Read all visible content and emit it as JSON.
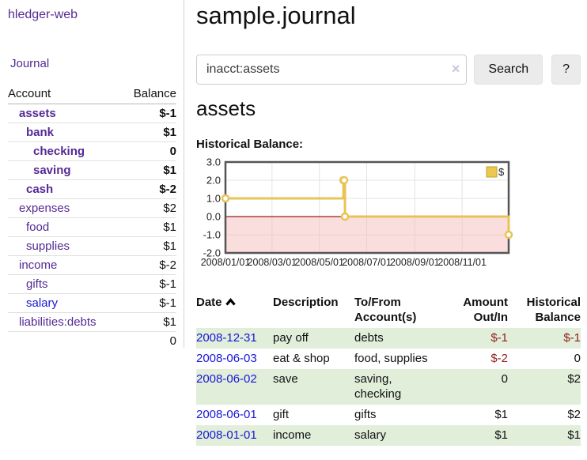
{
  "app": {
    "title": "hledger-web"
  },
  "sidebar": {
    "journal_link": "Journal",
    "headers": {
      "account": "Account",
      "balance": "Balance"
    },
    "accounts": [
      {
        "name": "assets",
        "balance": "$-1",
        "depth": 1,
        "bold": true,
        "balance_style": "neg-strong",
        "name_color": "purple"
      },
      {
        "name": "bank",
        "balance": "$1",
        "depth": 2,
        "bold": true,
        "balance_style": "normal",
        "name_color": "purple"
      },
      {
        "name": "checking",
        "balance": "0",
        "depth": 3,
        "bold": true,
        "balance_style": "normal",
        "name_color": "purple"
      },
      {
        "name": "saving",
        "balance": "$1",
        "depth": 3,
        "bold": true,
        "balance_style": "normal",
        "name_color": "purple"
      },
      {
        "name": "cash",
        "balance": "$-2",
        "depth": 2,
        "bold": true,
        "balance_style": "neg-strong",
        "name_color": "purple"
      },
      {
        "name": "expenses",
        "balance": "$2",
        "depth": 1,
        "bold": false,
        "balance_style": "normal",
        "name_color": "purple"
      },
      {
        "name": "food",
        "balance": "$1",
        "depth": 2,
        "bold": false,
        "balance_style": "normal",
        "name_color": "purple"
      },
      {
        "name": "supplies",
        "balance": "$1",
        "depth": 2,
        "bold": false,
        "balance_style": "normal",
        "name_color": "purple"
      },
      {
        "name": "income",
        "balance": "$-2",
        "depth": 1,
        "bold": false,
        "balance_style": "neg-soft",
        "name_color": "purple"
      },
      {
        "name": "gifts",
        "balance": "$-1",
        "depth": 2,
        "bold": false,
        "balance_style": "neg-soft",
        "name_color": "purple"
      },
      {
        "name": "salary",
        "balance": "$-1",
        "depth": 2,
        "bold": false,
        "balance_style": "neg-soft",
        "name_color": "blue"
      },
      {
        "name": "liabilities:debts",
        "balance": "$1",
        "depth": 1,
        "bold": false,
        "balance_style": "normal",
        "name_color": "purple"
      }
    ],
    "total": "0"
  },
  "header": {
    "title": "sample.journal"
  },
  "search": {
    "value": "inacct:assets",
    "clear_label": "×",
    "button_label": "Search",
    "help_label": "?"
  },
  "account_page": {
    "heading": "assets",
    "chart_label": "Historical Balance:"
  },
  "chart_data": {
    "type": "line",
    "step": true,
    "title": "Historical Balance",
    "legend": "$",
    "legend_position": "top-right",
    "grid": true,
    "x_range": [
      "2008-01-01",
      "2008-12-31"
    ],
    "ylim": [
      -2.0,
      3.0
    ],
    "y_ticks": [
      3.0,
      2.0,
      1.0,
      0.0,
      -1.0,
      -2.0
    ],
    "x_ticks": [
      "2008/01/01",
      "2008/03/01",
      "2008/05/01",
      "2008/07/01",
      "2008/09/01",
      "2008/11/01"
    ],
    "series": [
      {
        "name": "$",
        "points": [
          {
            "date": "2008-01-01",
            "value": 1
          },
          {
            "date": "2008-06-01",
            "value": 2
          },
          {
            "date": "2008-06-02",
            "value": 2
          },
          {
            "date": "2008-06-03",
            "value": 0
          },
          {
            "date": "2008-12-31",
            "value": -1
          }
        ]
      }
    ],
    "colors": {
      "line": "#e8c457",
      "marker_fill": "#ffffff",
      "negative_fill": "#f5bcbc",
      "zero_line": "#9b1c1c",
      "grid": "#e3e3e3",
      "border": "#555555",
      "legend_box_fill": "#ecc84c",
      "legend_box_border": "#c2a030"
    }
  },
  "register": {
    "headers": {
      "date": "Date",
      "description": "Description",
      "accounts": "To/From Account(s)",
      "amount": "Amount Out/In",
      "balance": "Historical Balance"
    },
    "rows": [
      {
        "date": "2008-12-31",
        "description": "pay off",
        "accounts": "debts",
        "amount": "$-1",
        "amount_negative": true,
        "balance": "$-1",
        "balance_negative": true
      },
      {
        "date": "2008-06-03",
        "description": "eat & shop",
        "accounts": "food, supplies",
        "amount": "$-2",
        "amount_negative": true,
        "balance": "0",
        "balance_negative": false
      },
      {
        "date": "2008-06-02",
        "description": "save",
        "accounts": "saving, checking",
        "amount": "0",
        "amount_negative": false,
        "balance": "$2",
        "balance_negative": false
      },
      {
        "date": "2008-06-01",
        "description": "gift",
        "accounts": "gifts",
        "amount": "$1",
        "amount_negative": false,
        "balance": "$2",
        "balance_negative": false
      },
      {
        "date": "2008-01-01",
        "description": "income",
        "accounts": "salary",
        "amount": "$1",
        "amount_negative": false,
        "balance": "$1",
        "balance_negative": false
      }
    ]
  }
}
